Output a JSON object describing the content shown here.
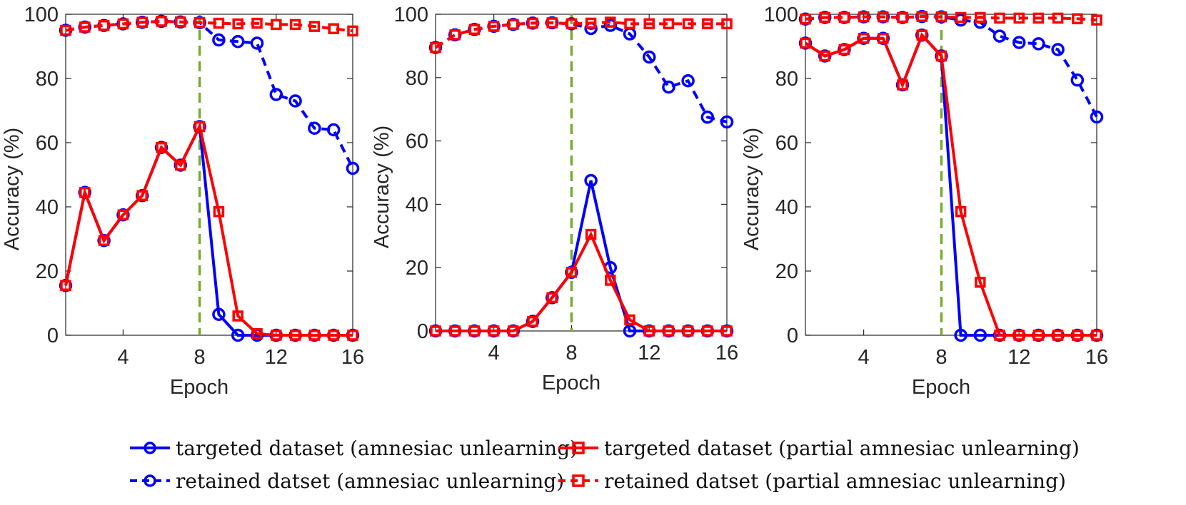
{
  "chart_data": [
    {
      "type": "line",
      "xlabel": "Epoch",
      "ylabel": "Accuracy (%)",
      "xlim": [
        1,
        16
      ],
      "ylim": [
        0,
        100
      ],
      "xticks": [
        4,
        8,
        12,
        16
      ],
      "yticks": [
        0,
        20,
        40,
        60,
        80,
        100
      ],
      "vline_x": 8,
      "grid": false,
      "x": [
        1,
        2,
        3,
        4,
        5,
        6,
        7,
        8,
        9,
        10,
        11,
        12,
        13,
        14,
        15,
        16
      ],
      "series": [
        {
          "name": "targeted dataset (amnesiac unlearning)",
          "values": [
            15.5,
            44.5,
            29.5,
            37.5,
            43.5,
            58.5,
            53,
            65,
            6.5,
            0,
            0,
            0,
            0,
            0,
            0,
            0
          ]
        },
        {
          "name": "targeted dataset (partial amnesiac unlearning)",
          "values": [
            15.5,
            44.5,
            29.5,
            37.5,
            43.5,
            58.5,
            53,
            65,
            38.5,
            6,
            0.5,
            0,
            0,
            0,
            0,
            0
          ]
        },
        {
          "name": "retained datset (amnesiac unlearning)",
          "values": [
            95,
            96,
            96.5,
            97,
            97.5,
            97.8,
            97.6,
            97.4,
            92,
            91.5,
            91,
            75,
            73,
            64.5,
            64,
            52
          ]
        },
        {
          "name": "retained datset (partial amnesiac unlearning)",
          "values": [
            95,
            96,
            96.5,
            97,
            97.5,
            97.8,
            97.6,
            97.4,
            97.2,
            97,
            97.2,
            96.8,
            96.8,
            96.2,
            95.5,
            94.8
          ]
        }
      ]
    },
    {
      "type": "line",
      "xlabel": "Epoch",
      "ylabel": "Accuracy (%)",
      "xlim": [
        1,
        16
      ],
      "ylim": [
        0,
        100
      ],
      "xticks": [
        4,
        8,
        12,
        16
      ],
      "yticks": [
        0,
        20,
        40,
        60,
        80,
        100
      ],
      "vline_x": 8,
      "grid": false,
      "x": [
        1,
        2,
        3,
        4,
        5,
        6,
        7,
        8,
        9,
        10,
        11,
        12,
        13,
        14,
        15,
        16
      ],
      "series": [
        {
          "name": "targeted dataset (amnesiac unlearning)",
          "values": [
            0,
            0,
            0,
            0,
            0,
            3,
            10.5,
            18.5,
            47.5,
            20,
            0,
            0,
            0,
            0,
            0,
            0
          ]
        },
        {
          "name": "targeted dataset (partial amnesiac unlearning)",
          "values": [
            0,
            0,
            0,
            0,
            0,
            3,
            10.5,
            18.5,
            30.5,
            16,
            3.5,
            0,
            0,
            0,
            0,
            0
          ]
        },
        {
          "name": "retained datset (amnesiac unlearning)",
          "values": [
            89.5,
            93.5,
            95.2,
            96.2,
            96.8,
            97.2,
            97.3,
            97,
            95.5,
            96.5,
            93.8,
            86.5,
            77,
            79,
            67.5,
            66
          ]
        },
        {
          "name": "retained datset (partial amnesiac unlearning)",
          "values": [
            89.5,
            93.5,
            95.2,
            96.2,
            96.8,
            97.2,
            97.3,
            97,
            97.2,
            97.5,
            97,
            97,
            97,
            97,
            97,
            97
          ]
        }
      ]
    },
    {
      "type": "line",
      "xlabel": "Epoch",
      "ylabel": "Accuracy (%)",
      "xlim": [
        1,
        16
      ],
      "ylim": [
        0,
        100
      ],
      "xticks": [
        4,
        8,
        12,
        16
      ],
      "yticks": [
        0,
        20,
        40,
        60,
        80,
        100
      ],
      "vline_x": 8,
      "grid": false,
      "x": [
        1,
        2,
        3,
        4,
        5,
        6,
        7,
        8,
        9,
        10,
        11,
        12,
        13,
        14,
        15,
        16
      ],
      "series": [
        {
          "name": "targeted dataset (amnesiac unlearning)",
          "values": [
            91,
            87,
            89,
            92.5,
            92.5,
            78,
            93.5,
            87,
            0,
            0,
            0,
            0,
            0,
            0,
            0,
            0
          ]
        },
        {
          "name": "targeted dataset (partial amnesiac unlearning)",
          "values": [
            91,
            87,
            89,
            92.5,
            92.5,
            78,
            93.5,
            87,
            38.5,
            16.5,
            0,
            0,
            0,
            0,
            0,
            0
          ]
        },
        {
          "name": "retained datset (amnesiac unlearning)",
          "values": [
            98.5,
            99,
            99,
            99.2,
            99.2,
            99,
            99.3,
            99.2,
            98.2,
            97.5,
            93.2,
            91.2,
            90.8,
            89,
            79.5,
            68
          ]
        },
        {
          "name": "retained datset (partial amnesiac unlearning)",
          "values": [
            98.5,
            99,
            99,
            99.2,
            99.2,
            99,
            99.3,
            99.2,
            99,
            99,
            98.8,
            98.8,
            98.8,
            98.8,
            98.6,
            98.2
          ]
        }
      ]
    }
  ],
  "style": {
    "series": [
      {
        "color": "#0000ff",
        "dash": "solid",
        "marker": "circle"
      },
      {
        "color": "#ff0000",
        "dash": "solid",
        "marker": "square"
      },
      {
        "color": "#0000ff",
        "dash": "dashed",
        "marker": "circle"
      },
      {
        "color": "#ff0000",
        "dash": "dashed",
        "marker": "square"
      }
    ],
    "vline_color": "#77ac30"
  },
  "legend": {
    "placement": "bottom",
    "items": [
      "targeted dataset (amnesiac unlearning)",
      "targeted dataset (partial amnesiac unlearning)",
      "retained datset (amnesiac unlearning)",
      "retained datset (partial amnesiac unlearning)"
    ]
  }
}
